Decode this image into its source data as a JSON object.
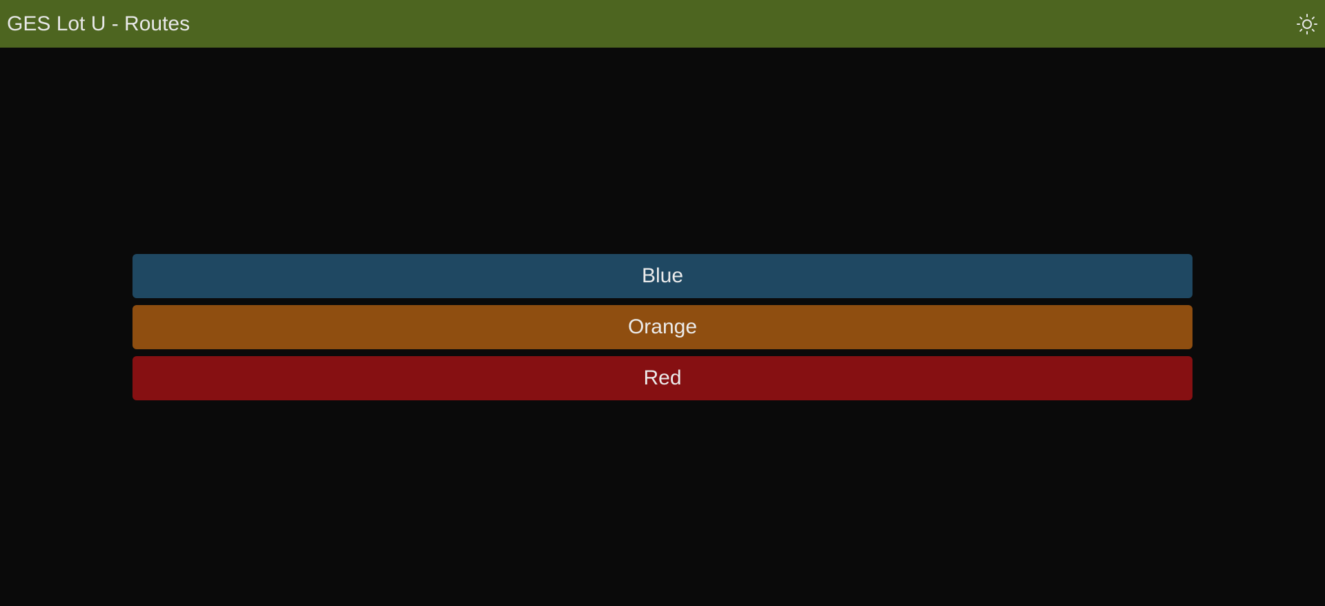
{
  "header": {
    "title": "GES Lot U - Routes",
    "theme_icon": "sun-icon"
  },
  "routes": [
    {
      "label": "Blue",
      "color": "#1f4862"
    },
    {
      "label": "Orange",
      "color": "#8f4e10"
    },
    {
      "label": "Red",
      "color": "#861012"
    }
  ],
  "colors": {
    "header_bg": "#4d6520",
    "page_bg": "#0a0a0a"
  }
}
